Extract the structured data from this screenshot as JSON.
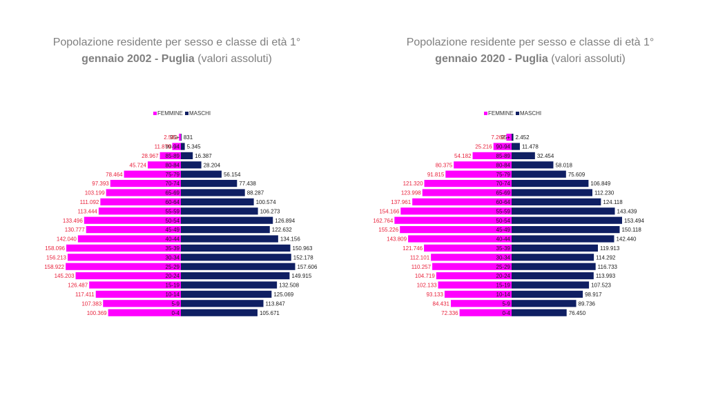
{
  "legend": {
    "female": "FEMMINE",
    "male": "MASCHI"
  },
  "colors": {
    "female": "#ff00ff",
    "male": "#0f1f63",
    "female_label": "#e8213b",
    "male_label": "#1a1a1a",
    "title": "#7f7f7f"
  },
  "chart_data": [
    {
      "type": "bar",
      "title": {
        "prefix": "Popolazione residente per sesso e classe di età 1°",
        "bold": "gennaio 2002 - Puglia",
        "unit": "(valori assoluti)"
      },
      "categories": [
        "95+",
        "90-94",
        "85-89",
        "80-84",
        "75-79",
        "70-74",
        "65-69",
        "60-64",
        "55-59",
        "50-54",
        "45-49",
        "40-44",
        "35-39",
        "30-34",
        "25-29",
        "20-24",
        "15-19",
        "10-14",
        "5-9",
        "0-4"
      ],
      "series": [
        {
          "name": "FEMMINE",
          "values": [
            2581,
            11879,
            28967,
            45724,
            78464,
            97393,
            103199,
            111092,
            113444,
            133496,
            130777,
            142040,
            158096,
            156213,
            158922,
            145203,
            126487,
            117411,
            107383,
            100369
          ],
          "labels": [
            "2.581",
            "11.879",
            "28.967",
            "45.724",
            "78.464",
            "97.393",
            "103.199",
            "111.092",
            "113.444",
            "133.496",
            "130.777",
            "142.040",
            "158.096",
            "156.213",
            "158.922",
            "145.203",
            "126.487",
            "117.411",
            "107.383",
            "100.369"
          ]
        },
        {
          "name": "MASCHI",
          "values": [
            831,
            5345,
            16387,
            28204,
            56154,
            77438,
            88287,
            100574,
            106273,
            126894,
            122632,
            134156,
            150963,
            152178,
            157606,
            149915,
            132508,
            125069,
            113847,
            105671
          ],
          "labels": [
            "831",
            "5.345",
            "16.387",
            "28.204",
            "56.154",
            "77.438",
            "88.287",
            "100.574",
            "106.273",
            "126.894",
            "122.632",
            "134.156",
            "150.963",
            "152.178",
            "157.606",
            "149.915",
            "132.508",
            "125.069",
            "113.847",
            "105.671"
          ]
        }
      ],
      "legend_position": "top",
      "xlabel": "",
      "ylabel": ""
    },
    {
      "type": "bar",
      "title": {
        "prefix": "Popolazione residente per sesso e classe di età 1°",
        "bold": "gennaio 2020 - Puglia",
        "unit": "(valori assoluti)"
      },
      "categories": [
        "95+",
        "90-94",
        "85-89",
        "80-84",
        "75-79",
        "70-74",
        "65-69",
        "60-64",
        "55-59",
        "50-54",
        "45-49",
        "40-44",
        "35-39",
        "30-34",
        "25-29",
        "20-24",
        "15-19",
        "10-14",
        "5-9",
        "0-4"
      ],
      "series": [
        {
          "name": "FEMMINE",
          "values": [
            7262,
            25216,
            54182,
            80375,
            91815,
            121320,
            123998,
            137961,
            154166,
            162764,
            155226,
            143809,
            121746,
            112101,
            110257,
            104719,
            102133,
            93133,
            84431,
            72336
          ],
          "labels": [
            "7.262",
            "25.216",
            "54.182",
            "80.375",
            "91.815",
            "121.320",
            "123.998",
            "137.961",
            "154.166",
            "162.764",
            "155.226",
            "143.809",
            "121.746",
            "112.101",
            "110.257",
            "104.719",
            "102.133",
            "93.133",
            "84.431",
            "72.336"
          ]
        },
        {
          "name": "MASCHI",
          "values": [
            2452,
            11478,
            32454,
            58018,
            75609,
            106849,
            112230,
            124118,
            143439,
            153494,
            150118,
            142440,
            119913,
            114292,
            116733,
            113993,
            107523,
            98917,
            89736,
            76450
          ],
          "labels": [
            "2.452",
            "11.478",
            "32.454",
            "58.018",
            "75.609",
            "106.849",
            "112.230",
            "124.118",
            "143.439",
            "153.494",
            "150.118",
            "142.440",
            "119.913",
            "114.292",
            "116.733",
            "113.993",
            "107.523",
            "98.917",
            "89.736",
            "76.450"
          ]
        }
      ],
      "legend_position": "top",
      "xlabel": "",
      "ylabel": ""
    }
  ]
}
